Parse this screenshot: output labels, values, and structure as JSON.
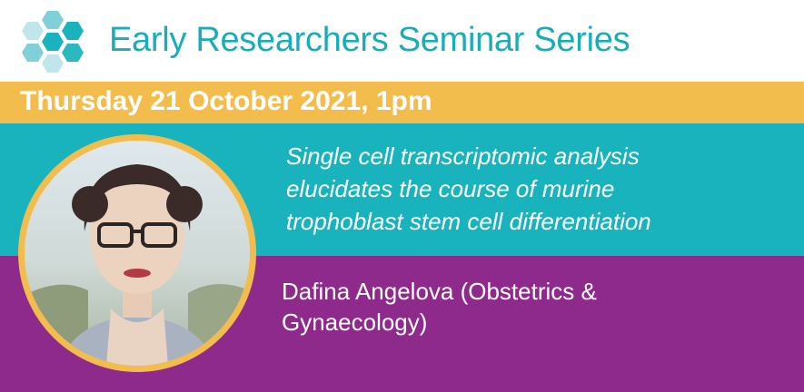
{
  "header": {
    "title": "Early Researchers Seminar Series"
  },
  "date": {
    "text": "Thursday 21 October 2021, 1pm"
  },
  "talk": {
    "title_lines": [
      "Single cell transcriptomic analysis",
      "elucidates the course of murine",
      "trophoblast stem cell differentiation"
    ]
  },
  "speaker": {
    "lines": [
      "Dafina Angelova (Obstetrics &",
      "Gynaecology)"
    ]
  },
  "colors": {
    "teal": "#19b3bd",
    "title_teal": "#1badb7",
    "gold": "#f3bd4d",
    "purple": "#8e2a8c",
    "white": "#ffffff"
  },
  "icons": {
    "logo": "hexagon-cluster-logo-icon"
  }
}
